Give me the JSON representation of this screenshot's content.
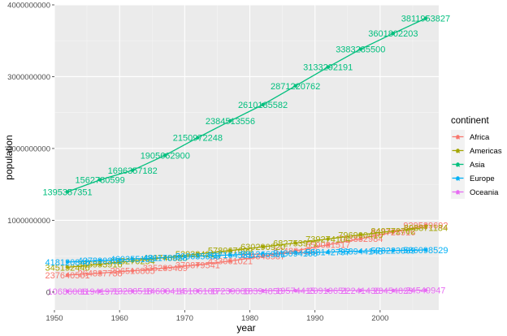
{
  "chart_data": {
    "type": "line",
    "xlabel": "year",
    "ylabel": "population",
    "xlim": [
      1950,
      2009
    ],
    "ylim": [
      -250000000,
      4000000000
    ],
    "x_ticks": [
      "1950",
      "1960",
      "1970",
      "1980",
      "1990",
      "2000"
    ],
    "y_ticks": [
      "0",
      "1000000000",
      "2000000000",
      "3000000000",
      "4000000000"
    ],
    "x_tick_values": [
      1950,
      1960,
      1970,
      1980,
      1990,
      2000
    ],
    "y_tick_values": [
      0,
      1000000000,
      2000000000,
      3000000000,
      4000000000
    ],
    "grid": true,
    "legend": {
      "title": "continent",
      "placement": "right"
    },
    "x": [
      1952,
      1957,
      1962,
      1967,
      1972,
      1977,
      1982,
      1987,
      1992,
      1997,
      2002,
      2007
    ],
    "series": [
      {
        "name": "Africa",
        "color": "#F8766D",
        "values": [
          237640501,
          264837738,
          296516865,
          335289489,
          379879541,
          433061021,
          499348587,
          574834110,
          659081517,
          743832984,
          833723916,
          929539692
        ]
      },
      {
        "name": "Americas",
        "color": "#A3A500",
        "values": [
          345152446,
          386953916,
          433270254,
          480746623,
          529384210,
          578067699,
          630290920,
          682753971,
          739274104,
          796900410,
          849772762,
          898871184
        ]
      },
      {
        "name": "Asia",
        "color": "#00BF7D",
        "values": [
          1395357351,
          1562780599,
          1696357182,
          1905662900,
          2150972248,
          2384513556,
          2610135582,
          2871220762,
          3133292191,
          3383285500,
          3601802203,
          3811953827
        ]
      },
      {
        "name": "Europe",
        "color": "#00B0F6",
        "values": [
          418120846,
          437890351,
          460355155,
          481178958,
          500635059,
          517164531,
          531266901,
          543094160,
          558142797,
          568944148,
          578223869,
          586098529
        ]
      },
      {
        "name": "Oceania",
        "color": "#E76BF3",
        "values": [
          10686006,
          11941976,
          13283518,
          14600414,
          16106100,
          17239000,
          18394850,
          19574415,
          20919651,
          22241430,
          23454829,
          24549947
        ]
      }
    ]
  }
}
